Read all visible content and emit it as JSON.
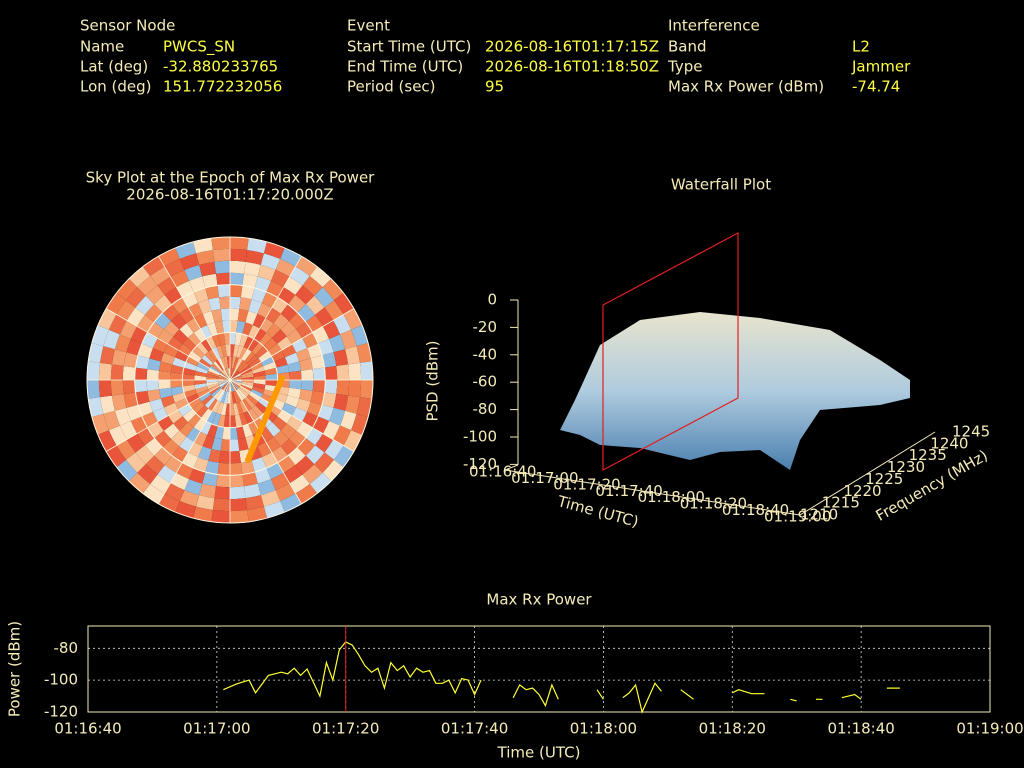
{
  "header": {
    "sensor": {
      "title": "Sensor Node",
      "rows": [
        [
          "Name",
          "PWCS_SN"
        ],
        [
          "Lat (deg)",
          "-32.880233765"
        ],
        [
          "Lon (deg)",
          "151.772232056"
        ]
      ]
    },
    "event": {
      "title": "Event",
      "rows": [
        [
          "Start Time (UTC)",
          "2026-08-16T01:17:15Z"
        ],
        [
          "End Time (UTC)",
          "2026-08-16T01:18:50Z"
        ],
        [
          "Period (sec)",
          "95"
        ]
      ]
    },
    "interference": {
      "title": "Interference",
      "rows": [
        [
          "Band",
          "L2"
        ],
        [
          "Type",
          "Jammer"
        ],
        [
          "Max Rx Power (dBm)",
          "-74.74"
        ]
      ]
    }
  },
  "sky_plot": {
    "title": "Sky Plot at the Epoch of Max Rx Power",
    "subtitle": "2026-08-16T01:17:20.000Z"
  },
  "waterfall": {
    "title": "Waterfall Plot",
    "z_label": "PSD (dBm)",
    "x_label": "Time (UTC)",
    "y_label": "Frequency (MHz)",
    "zticks": [
      0,
      -20,
      -40,
      -60,
      -80,
      -100,
      -120
    ],
    "xticks": [
      "01:16:40",
      "01:17:00",
      "01:17:20",
      "01:17:40",
      "01:18:00",
      "01:18:20",
      "01:18:40",
      "01:19:00"
    ],
    "yticks": [
      1210,
      1215,
      1220,
      1225,
      1230,
      1235,
      1240,
      1245
    ]
  },
  "chart_data": {
    "type": "line",
    "title": "Max Rx Power",
    "x_label": "Time (UTC)",
    "y_label": "Power (dBm)",
    "color": "#ffff33",
    "x": [
      "01:17:01",
      "01:17:03",
      "01:17:05",
      "01:17:06",
      "01:17:08",
      "01:17:10",
      "01:17:11",
      "01:17:12",
      "01:17:13",
      "01:17:14",
      "01:17:16",
      "01:17:17",
      "01:17:18",
      "01:17:19",
      "01:17:20",
      "01:17:21",
      "01:17:22",
      "01:17:23",
      "01:17:24",
      "01:17:25",
      "01:17:26",
      "01:17:27",
      "01:17:28",
      "01:17:29",
      "01:17:30",
      "01:17:31",
      "01:17:32",
      "01:17:33",
      "01:17:34",
      "01:17:35",
      "01:17:36",
      "01:17:37",
      "01:17:38",
      "01:17:39",
      "01:17:40",
      "01:17:41",
      "01:17:43",
      "01:17:46",
      "01:17:47",
      "01:17:48",
      "01:17:49",
      "01:17:50",
      "01:17:51",
      "01:17:52",
      "01:17:53",
      "01:17:55",
      "01:17:59",
      "01:18:00",
      "01:18:01",
      "01:18:03",
      "01:18:04",
      "01:18:05",
      "01:18:06",
      "01:18:08",
      "01:18:09",
      "01:18:10",
      "01:18:12",
      "01:18:13",
      "01:18:14",
      "01:18:17",
      "01:18:20",
      "01:18:21",
      "01:18:23",
      "01:18:25",
      "01:18:27",
      "01:18:29",
      "01:18:30",
      "01:18:31",
      "01:18:33",
      "01:18:34",
      "01:18:35",
      "01:18:37",
      "01:18:39",
      "01:18:40",
      "01:18:42",
      "01:18:44",
      "01:18:46"
    ],
    "values": [
      -106,
      -102.5,
      -100,
      -108,
      -97,
      -95,
      -96,
      -92.5,
      -97,
      -93,
      -110,
      -89,
      -100,
      -81,
      -76,
      -78,
      -84,
      -91,
      -95,
      -92.5,
      -105,
      -89,
      -94,
      -91,
      -98,
      -92.5,
      -95,
      -94,
      -102,
      -102,
      -100,
      -108,
      -99,
      -100,
      -109,
      -100,
      null,
      -111,
      -103,
      -106,
      -105,
      -109,
      -116,
      -103,
      -112,
      null,
      -106,
      -112,
      null,
      -111,
      -108,
      -103,
      -120,
      -102,
      -107,
      null,
      -106,
      -109,
      -112,
      null,
      -108,
      -106,
      -108.5,
      -108.5,
      null,
      -112,
      -113,
      null,
      -112,
      -112,
      null,
      -111,
      -109,
      -112,
      null,
      -105,
      -105
    ],
    "marker_x": "01:17:20",
    "xlim": [
      "01:16:40",
      "01:19:00"
    ],
    "xticks": [
      "01:16:40",
      "01:17:00",
      "01:17:20",
      "01:17:40",
      "01:18:00",
      "01:18:20",
      "01:18:40",
      "01:19:00"
    ],
    "ylim": [
      -120,
      -66
    ],
    "yticks": [
      -120,
      -100,
      -80
    ],
    "grid": true
  }
}
